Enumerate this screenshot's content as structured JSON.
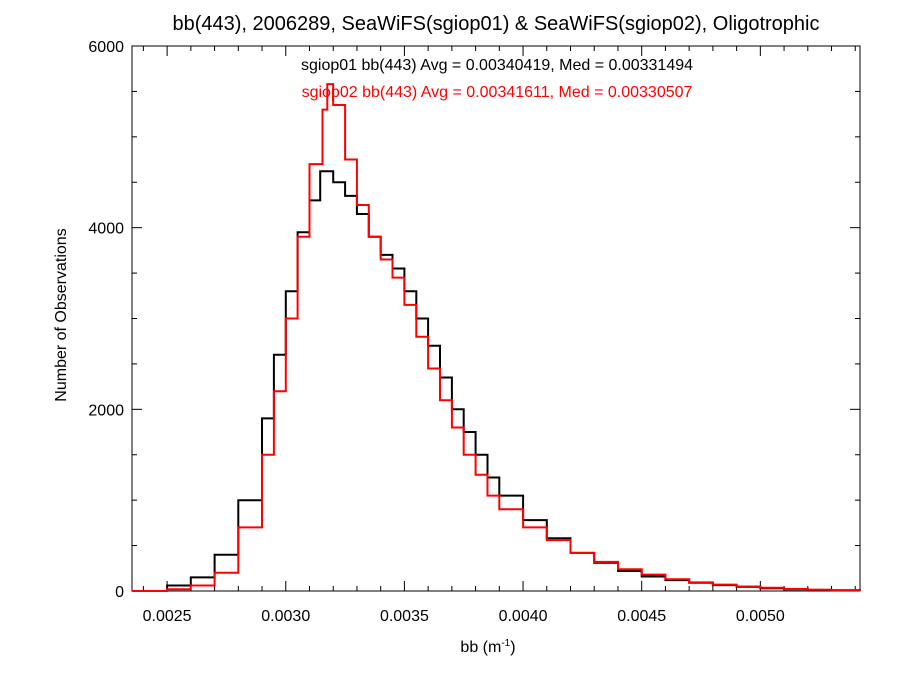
{
  "chart_data": {
    "type": "line",
    "title": "bb(443), 2006289, SeaWiFS(sgiop01) & SeaWiFS(sgiop02), Oligotrophic",
    "xlabel": "bb (m",
    "xlabel_sup": "-1",
    "xlabel_close": ")",
    "ylabel": "Number of Observations",
    "xlim": [
      0.002352,
      0.00542
    ],
    "ylim": [
      0,
      6000
    ],
    "grid": false,
    "step": true,
    "x_ticks": [
      {
        "value": 0.0025,
        "label": "0.0025"
      },
      {
        "value": 0.003,
        "label": "0.0030"
      },
      {
        "value": 0.0035,
        "label": "0.0035"
      },
      {
        "value": 0.004,
        "label": "0.0040"
      },
      {
        "value": 0.0045,
        "label": "0.0045"
      },
      {
        "value": 0.005,
        "label": "0.0050"
      }
    ],
    "y_ticks": [
      {
        "value": 0,
        "label": "0"
      },
      {
        "value": 2000,
        "label": "2000"
      },
      {
        "value": 4000,
        "label": "4000"
      },
      {
        "value": 6000,
        "label": "6000"
      }
    ],
    "annotations": [
      {
        "text": "sgiop01 bb(443) Avg = 0.00340419, Med = 0.00331494",
        "color": "#000000"
      },
      {
        "text": "sgiop02 bb(443) Avg = 0.00341611, Med = 0.00330507",
        "color": "#ff0000"
      }
    ],
    "series": [
      {
        "name": "sgiop01",
        "color": "#000000",
        "x": [
          0.00235,
          0.0025,
          0.0026,
          0.0027,
          0.0028,
          0.0029,
          0.00295,
          0.003,
          0.00305,
          0.0031,
          0.003145,
          0.0032,
          0.00325,
          0.0033,
          0.00335,
          0.0034,
          0.00345,
          0.0035,
          0.00355,
          0.0036,
          0.00365,
          0.0037,
          0.00375,
          0.0038,
          0.00385,
          0.0039,
          0.004,
          0.0041,
          0.0042,
          0.0043,
          0.0044,
          0.0045,
          0.0046,
          0.0047,
          0.0048,
          0.0049,
          0.005,
          0.0051,
          0.0052,
          0.0053,
          0.00542
        ],
        "y": [
          0,
          60,
          150,
          400,
          1000,
          1900,
          2600,
          3300,
          3950,
          4300,
          4620,
          4500,
          4350,
          4150,
          3900,
          3700,
          3550,
          3300,
          3000,
          2700,
          2350,
          2000,
          1750,
          1500,
          1250,
          1050,
          780,
          580,
          420,
          310,
          220,
          160,
          120,
          90,
          65,
          45,
          30,
          20,
          12,
          8,
          3
        ]
      },
      {
        "name": "sgiop02",
        "color": "#ff0000",
        "x": [
          0.00235,
          0.0025,
          0.0026,
          0.0027,
          0.0028,
          0.0029,
          0.00295,
          0.003,
          0.00305,
          0.0031,
          0.003155,
          0.003175,
          0.0032,
          0.00325,
          0.0033,
          0.00335,
          0.0034,
          0.00345,
          0.0035,
          0.00355,
          0.0036,
          0.00365,
          0.0037,
          0.00375,
          0.0038,
          0.00385,
          0.0039,
          0.004,
          0.0041,
          0.0042,
          0.0043,
          0.0044,
          0.0045,
          0.0046,
          0.0047,
          0.0048,
          0.0049,
          0.005,
          0.0051,
          0.0052,
          0.0053,
          0.00542
        ],
        "y": [
          0,
          20,
          60,
          200,
          700,
          1500,
          2200,
          3000,
          3900,
          4700,
          5300,
          5580,
          5350,
          4750,
          4250,
          3900,
          3650,
          3450,
          3150,
          2800,
          2450,
          2100,
          1800,
          1500,
          1280,
          1050,
          900,
          700,
          560,
          420,
          320,
          240,
          180,
          130,
          95,
          70,
          50,
          35,
          22,
          14,
          9,
          4
        ]
      }
    ]
  }
}
